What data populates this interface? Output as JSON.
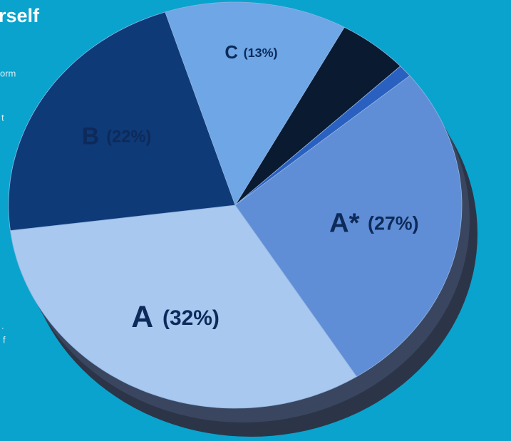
{
  "sidebar": {
    "title": "rself",
    "fragments": [
      "orm",
      ".",
      "t",
      ".",
      "f"
    ]
  },
  "chart_data": {
    "type": "pie",
    "categories": [
      "C",
      null,
      null,
      "A*",
      "A",
      "B"
    ],
    "values": [
      13,
      5,
      1,
      27,
      32,
      22
    ],
    "value_labels": [
      "(13%)",
      null,
      null,
      "(27%)",
      "(32%)",
      "(22%)"
    ],
    "colors": [
      "#6ea6e6",
      "#0a1a30",
      "#2a60c0",
      "#5f8ed6",
      "#a8c8ef",
      "#0e3a78"
    ]
  }
}
